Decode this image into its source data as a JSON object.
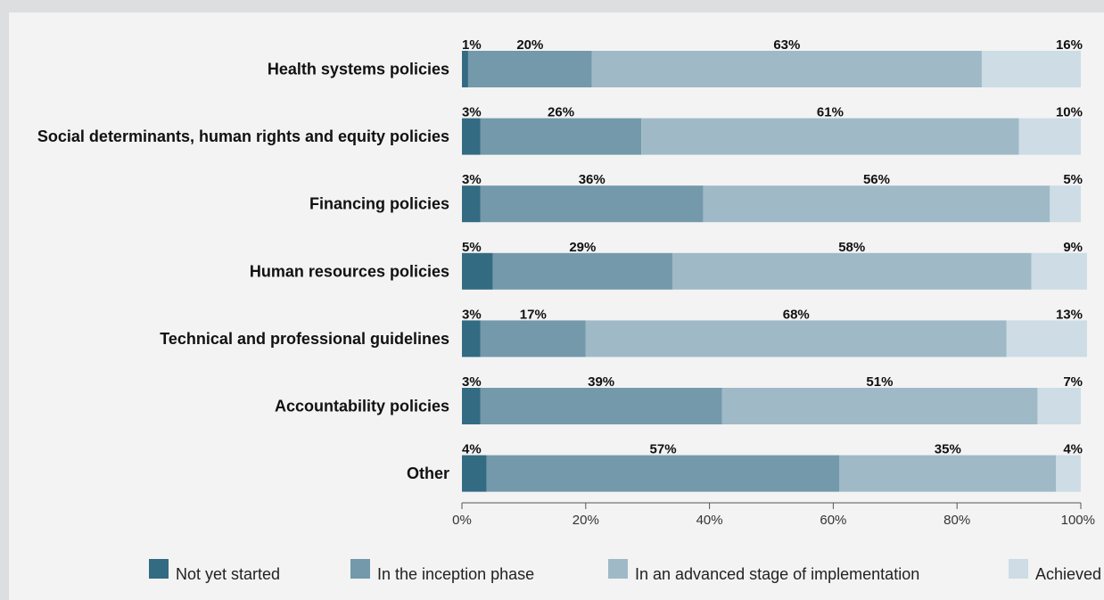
{
  "chart_data": {
    "type": "bar",
    "orientation": "horizontal",
    "stacked": true,
    "categories": [
      "Health systems policies",
      "Social determinants, human rights and equity policies",
      "Financing policies",
      "Human resources policies",
      "Technical and professional guidelines",
      "Accountability policies",
      "Other"
    ],
    "series": [
      {
        "name": "Not yet started",
        "color": "#336b82",
        "values": [
          1,
          3,
          3,
          5,
          3,
          3,
          4
        ]
      },
      {
        "name": "In the inception phase",
        "color": "#7399ab",
        "values": [
          20,
          26,
          36,
          29,
          17,
          39,
          57
        ]
      },
      {
        "name": "In an advanced stage of implementation",
        "color": "#9fb9c7",
        "values": [
          63,
          61,
          56,
          58,
          68,
          51,
          35
        ]
      },
      {
        "name": "Achieved",
        "color": "#cddce5",
        "values": [
          16,
          10,
          5,
          9,
          13,
          7,
          4
        ]
      }
    ],
    "value_suffix": "%",
    "xlim": [
      0,
      100
    ],
    "xticks": [
      "0%",
      "20%",
      "40%",
      "60%",
      "80%",
      "100%"
    ],
    "grid": false,
    "legend_position": "bottom"
  }
}
